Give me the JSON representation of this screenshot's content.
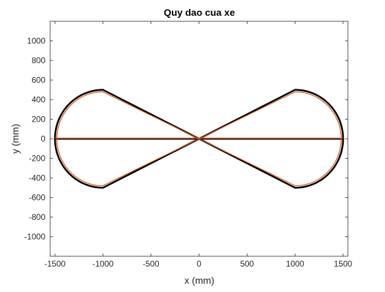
{
  "chart_data": {
    "type": "line",
    "title": "Quy dao cua xe",
    "xlabel": "x (mm)",
    "ylabel": "y (mm)",
    "xlim": [
      -1550,
      1550
    ],
    "ylim": [
      -1200,
      1200
    ],
    "xticks": [
      -1500,
      -1000,
      -500,
      0,
      500,
      1000,
      1500
    ],
    "yticks": [
      -1000,
      -800,
      -600,
      -400,
      -200,
      0,
      200,
      400,
      600,
      800,
      1000
    ],
    "grid": false,
    "legend": "none",
    "series": [
      {
        "color": "#000000",
        "segments": [
          {
            "kind": "line",
            "points": [
              [
                -1500,
                0
              ],
              [
                1500,
                0
              ]
            ]
          },
          {
            "kind": "line",
            "points": [
              [
                -1000,
                500
              ],
              [
                1000,
                -500
              ]
            ]
          },
          {
            "kind": "line",
            "points": [
              [
                1000,
                500
              ],
              [
                -1000,
                -500
              ]
            ]
          },
          {
            "kind": "arc",
            "center": [
              -1000,
              0
            ],
            "radius": 500,
            "from_deg": 90,
            "to_deg": 270
          },
          {
            "kind": "arc",
            "center": [
              1000,
              0
            ],
            "radius": 500,
            "from_deg": 90,
            "to_deg": -90
          }
        ]
      },
      {
        "color": "#d9541a",
        "segments": [
          {
            "kind": "line",
            "points": [
              [
                -1495,
                6
              ],
              [
                1495,
                6
              ]
            ]
          },
          {
            "kind": "line",
            "points": [
              [
                -1000,
                478
              ],
              [
                1000,
                -478
              ]
            ]
          },
          {
            "kind": "line",
            "points": [
              [
                1000,
                478
              ],
              [
                -1000,
                -478
              ]
            ]
          },
          {
            "kind": "arc",
            "center": [
              -1000,
              0
            ],
            "radius": 480,
            "from_deg": 90,
            "to_deg": 270
          },
          {
            "kind": "arc",
            "center": [
              1000,
              0
            ],
            "radius": 480,
            "from_deg": 90,
            "to_deg": -90
          }
        ]
      }
    ]
  }
}
